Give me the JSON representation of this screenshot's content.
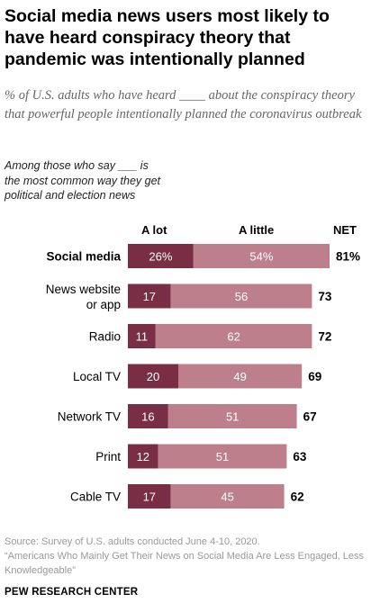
{
  "header": {
    "title": "Social media news users most likely to have heard conspiracy theory that pandemic was intentionally planned",
    "subtitle": "% of U.S. adults who have heard ____ about the conspiracy theory that powerful people intentionally planned the coronavirus outbreak",
    "group_note": "Among those who say ___ is the most common way they get political and election news"
  },
  "columns": {
    "alot": "A lot",
    "alittle": "A little",
    "net": "NET"
  },
  "colors": {
    "alot": "#7a2e45",
    "alittle": "#be7f8d",
    "label_text": "#ffffff"
  },
  "chart_data": {
    "type": "bar",
    "orientation": "horizontal",
    "stacked": true,
    "categories": [
      "Social media",
      "News website or app",
      "Radio",
      "Local TV",
      "Network TV",
      "Print",
      "Cable TV"
    ],
    "category_display": [
      [
        "Social media"
      ],
      [
        "News website",
        "or app"
      ],
      [
        "Radio"
      ],
      [
        "Local TV"
      ],
      [
        "Network TV"
      ],
      [
        "Print"
      ],
      [
        "Cable TV"
      ]
    ],
    "series": [
      {
        "name": "A lot",
        "values": [
          26,
          17,
          11,
          20,
          16,
          12,
          17
        ]
      },
      {
        "name": "A little",
        "values": [
          54,
          56,
          62,
          49,
          51,
          51,
          45
        ]
      }
    ],
    "net": [
      81,
      73,
      72,
      69,
      67,
      63,
      62
    ],
    "value_labels": {
      "alot": [
        "26%",
        "17",
        "11",
        "20",
        "16",
        "12",
        "17"
      ],
      "alittle": [
        "54%",
        "56",
        "62",
        "49",
        "51",
        "51",
        "45"
      ],
      "net": [
        "81%",
        "73",
        "72",
        "69",
        "67",
        "63",
        "62"
      ]
    },
    "highlight_category": "Social media",
    "xlim": [
      0,
      81
    ]
  },
  "footer": {
    "source": "Source: Survey of U.S. adults conducted June 4-10, 2020.",
    "report": "“Americans Who Mainly Get Their News on Social Media Are Less Engaged, Less Knowledgeable”",
    "brand": "PEW RESEARCH CENTER"
  }
}
